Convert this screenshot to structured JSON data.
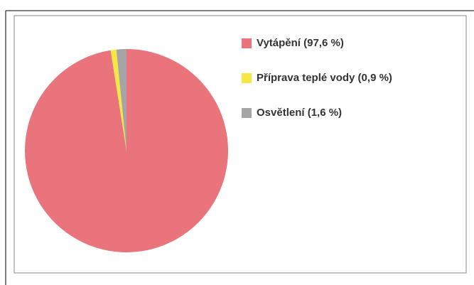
{
  "chart_data": {
    "type": "pie",
    "categories": [
      "Vytápění (97,6 %)",
      "Příprava teplé vody (0,9 %)",
      "Osvětlení (1,6 %)"
    ],
    "values": [
      97.6,
      0.9,
      1.6
    ],
    "colors": [
      "#e9747b",
      "#f6e743",
      "#a5a5a5"
    ],
    "start_angle": 0,
    "direction": "clockwise",
    "legend": "right"
  }
}
